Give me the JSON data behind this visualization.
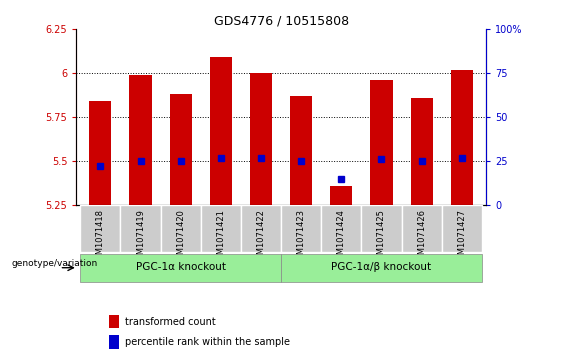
{
  "title": "GDS4776 / 10515808",
  "samples": [
    "GSM1071418",
    "GSM1071419",
    "GSM1071420",
    "GSM1071421",
    "GSM1071422",
    "GSM1071423",
    "GSM1071424",
    "GSM1071425",
    "GSM1071426",
    "GSM1071427"
  ],
  "red_bar_tops": [
    5.84,
    5.99,
    5.88,
    6.09,
    6.0,
    5.87,
    5.36,
    5.96,
    5.86,
    6.02
  ],
  "red_bar_bottoms": [
    5.25,
    5.25,
    5.25,
    5.25,
    5.25,
    5.25,
    5.25,
    5.25,
    5.25,
    5.25
  ],
  "blue_square_pct": [
    22,
    25,
    25,
    27,
    27,
    25,
    15,
    26,
    25,
    27
  ],
  "ylim_left": [
    5.25,
    6.25
  ],
  "ylim_right": [
    0,
    100
  ],
  "yticks_left": [
    5.25,
    5.5,
    5.75,
    6.0,
    6.25
  ],
  "yticks_right": [
    0,
    25,
    50,
    75,
    100
  ],
  "ytick_labels_left": [
    "5.25",
    "5.5",
    "5.75",
    "6",
    "6.25"
  ],
  "ytick_labels_right": [
    "0",
    "25",
    "50",
    "75",
    "100%"
  ],
  "group1_label": "PGC-1α knockout",
  "group2_label": "PGC-1α/β knockout",
  "group1_indices": [
    0,
    1,
    2,
    3,
    4
  ],
  "group2_indices": [
    5,
    6,
    7,
    8,
    9
  ],
  "genotype_label": "genotype/variation",
  "legend1_label": "transformed count",
  "legend2_label": "percentile rank within the sample",
  "red_color": "#cc0000",
  "blue_color": "#0000cc",
  "group_bg_color": "#99ee99",
  "tick_bg_color": "#cccccc",
  "bar_width": 0.55,
  "dotted_lines": [
    5.5,
    5.75,
    6.0
  ]
}
